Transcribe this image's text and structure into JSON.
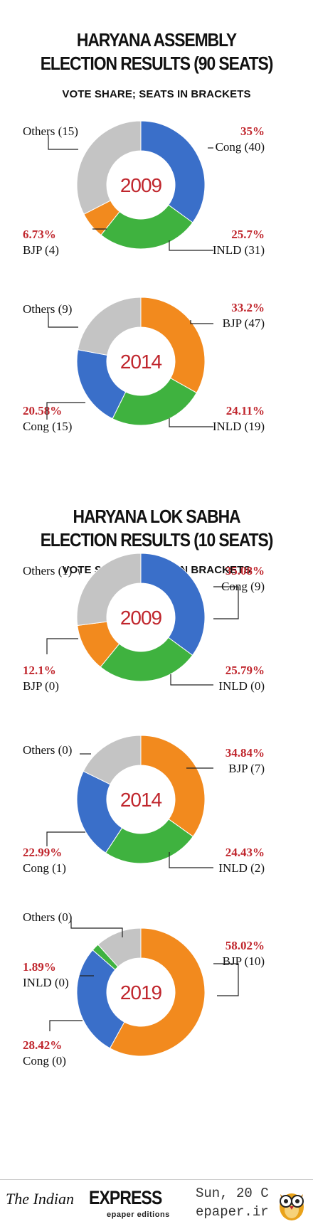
{
  "sections": [
    {
      "title_line1": "HARYANA ASSEMBLY",
      "title_line2": "ELECTION RESULTS (90 SEATS)",
      "subtitle": "VOTE SHARE; SEATS IN BRACKETS"
    },
    {
      "title_line1": "HARYANA LOK SABHA",
      "title_line2": "ELECTION RESULTS (10 SEATS)",
      "subtitle": "VOTE SHARE; SEATS IN BRACKETS"
    }
  ],
  "colors": {
    "Cong": "#3a6fc9",
    "INLD": "#3fb23f",
    "BJP": "#f28a1e",
    "Others": "#c4c4c4",
    "accent": "#c0262d"
  },
  "chart_data": [
    {
      "type": "donut",
      "section": "HARYANA ASSEMBLY ELECTION RESULTS (90 SEATS)",
      "center_label": "2009",
      "slices": [
        {
          "party": "Cong",
          "percent": 35,
          "pct_text": "35%",
          "label": "Cong (40)"
        },
        {
          "party": "INLD",
          "percent": 25.7,
          "pct_text": "25.7%",
          "label": "INLD (31)"
        },
        {
          "party": "BJP",
          "percent": 6.73,
          "pct_text": "6.73%",
          "label": "BJP (4)"
        },
        {
          "party": "Others",
          "percent": 32.57,
          "pct_text": "",
          "label": "Others (15)"
        }
      ]
    },
    {
      "type": "donut",
      "section": "HARYANA ASSEMBLY ELECTION RESULTS (90 SEATS)",
      "center_label": "2014",
      "slices": [
        {
          "party": "BJP",
          "percent": 33.2,
          "pct_text": "33.2%",
          "label": "BJP (47)"
        },
        {
          "party": "INLD",
          "percent": 24.11,
          "pct_text": "24.11%",
          "label": "INLD (19)"
        },
        {
          "party": "Cong",
          "percent": 20.58,
          "pct_text": "20.58%",
          "label": "Cong (15)"
        },
        {
          "party": "Others",
          "percent": 22.11,
          "pct_text": "",
          "label": "Others (9)"
        }
      ]
    },
    {
      "type": "donut",
      "section": "HARYANA LOK SABHA ELECTION RESULTS (10 SEATS)",
      "center_label": "2009",
      "slices": [
        {
          "party": "Cong",
          "percent": 35.08,
          "pct_text": "35.08%",
          "label": "Cong (9)"
        },
        {
          "party": "INLD",
          "percent": 25.79,
          "pct_text": "25.79%",
          "label": "INLD (0)"
        },
        {
          "party": "BJP",
          "percent": 12.1,
          "pct_text": "12.1%",
          "label": "BJP (0)"
        },
        {
          "party": "Others",
          "percent": 27.03,
          "pct_text": "",
          "label": "Others (1)"
        }
      ]
    },
    {
      "type": "donut",
      "section": "HARYANA LOK SABHA ELECTION RESULTS (10 SEATS)",
      "center_label": "2014",
      "slices": [
        {
          "party": "BJP",
          "percent": 34.84,
          "pct_text": "34.84%",
          "label": "BJP (7)"
        },
        {
          "party": "INLD",
          "percent": 24.43,
          "pct_text": "24.43%",
          "label": "INLD (2)"
        },
        {
          "party": "Cong",
          "percent": 22.99,
          "pct_text": "22.99%",
          "label": "Cong (1)"
        },
        {
          "party": "Others",
          "percent": 17.74,
          "pct_text": "",
          "label": "Others (0)"
        }
      ]
    },
    {
      "type": "donut",
      "section": "HARYANA LOK SABHA ELECTION RESULTS (10 SEATS)",
      "center_label": "2019",
      "slices": [
        {
          "party": "BJP",
          "percent": 58.02,
          "pct_text": "58.02%",
          "label": "BJP (10)"
        },
        {
          "party": "Cong",
          "percent": 28.42,
          "pct_text": "28.42%",
          "label": "Cong (0)"
        },
        {
          "party": "INLD",
          "percent": 1.89,
          "pct_text": "1.89%",
          "label": "INLD (0)"
        },
        {
          "party": "Others",
          "percent": 11.67,
          "pct_text": "",
          "label": "Others (0)"
        }
      ]
    }
  ],
  "footer": {
    "brand_italic": "The Indian",
    "brand_bold": "EXPRESS",
    "brand_sub": "epaper editions",
    "stamp_line1": "Sun, 20 C",
    "stamp_line2": "epaper.ir"
  }
}
